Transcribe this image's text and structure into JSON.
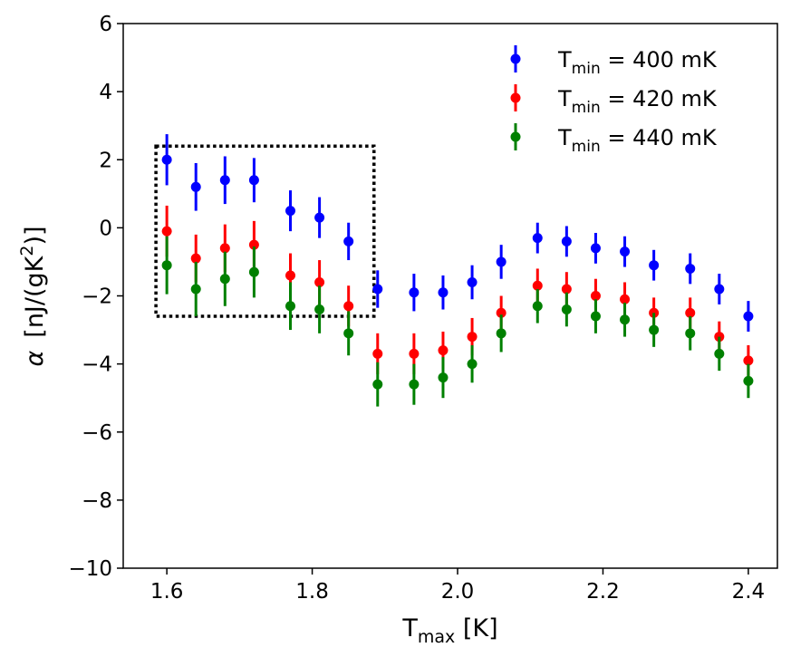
{
  "chart_data": {
    "type": "scatter",
    "xlabel": {
      "main": "T",
      "sub": "max",
      "rest": " [K]"
    },
    "ylabel": {
      "greek": "α",
      "unit": "[nJ/(gK",
      "sup": "2",
      "close": ")]"
    },
    "xlim": [
      1.54,
      2.44
    ],
    "ylim": [
      -10,
      6
    ],
    "xticks": [
      1.6,
      1.8,
      2.0,
      2.2,
      2.4
    ],
    "xtick_labels": [
      "1.6",
      "1.8",
      "2.0",
      "2.2",
      "2.4"
    ],
    "yticks": [
      6,
      4,
      2,
      0,
      -2,
      -4,
      -6,
      -8,
      -10
    ],
    "ytick_labels": [
      "6",
      "4",
      "2",
      "0",
      "−2",
      "−4",
      "−6",
      "−8",
      "−10"
    ],
    "x": [
      1.6,
      1.64,
      1.68,
      1.72,
      1.77,
      1.81,
      1.85,
      1.89,
      1.94,
      1.98,
      2.02,
      2.06,
      2.11,
      2.15,
      2.19,
      2.23,
      2.27,
      2.32,
      2.36,
      2.4
    ],
    "series": [
      {
        "name": "Tmin = 400 mK",
        "label_main": "T",
        "label_sub": "min",
        "label_rest": " = 400 mK",
        "color": "#0000ff",
        "values": [
          2.0,
          1.2,
          1.4,
          1.4,
          0.5,
          0.3,
          -0.4,
          -1.8,
          -1.9,
          -1.9,
          -1.6,
          -1.0,
          -0.3,
          -0.4,
          -0.6,
          -0.7,
          -1.1,
          -1.2,
          -1.8,
          -2.6
        ],
        "err": [
          0.75,
          0.7,
          0.7,
          0.65,
          0.6,
          0.6,
          0.55,
          0.55,
          0.55,
          0.5,
          0.5,
          0.5,
          0.45,
          0.45,
          0.45,
          0.45,
          0.45,
          0.45,
          0.45,
          0.45
        ]
      },
      {
        "name": "Tmin = 420 mK",
        "label_main": "T",
        "label_sub": "min",
        "label_rest": " = 420 mK",
        "color": "#ff0000",
        "values": [
          -0.1,
          -0.9,
          -0.6,
          -0.5,
          -1.4,
          -1.6,
          -2.3,
          -3.7,
          -3.7,
          -3.6,
          -3.2,
          -2.5,
          -1.7,
          -1.8,
          -2.0,
          -2.1,
          -2.5,
          -2.5,
          -3.2,
          -3.9
        ],
        "err": [
          0.75,
          0.7,
          0.7,
          0.7,
          0.65,
          0.65,
          0.6,
          0.6,
          0.6,
          0.55,
          0.55,
          0.5,
          0.5,
          0.5,
          0.5,
          0.5,
          0.45,
          0.45,
          0.45,
          0.45
        ]
      },
      {
        "name": "Tmin = 440 mK",
        "label_main": "T",
        "label_sub": "min",
        "label_rest": " = 440 mK",
        "color": "#008000",
        "values": [
          -1.1,
          -1.8,
          -1.5,
          -1.3,
          -2.3,
          -2.4,
          -3.1,
          -4.6,
          -4.6,
          -4.4,
          -4.0,
          -3.1,
          -2.3,
          -2.4,
          -2.6,
          -2.7,
          -3.0,
          -3.1,
          -3.7,
          -4.5
        ],
        "err": [
          0.85,
          0.8,
          0.8,
          0.75,
          0.7,
          0.7,
          0.65,
          0.65,
          0.6,
          0.6,
          0.55,
          0.55,
          0.5,
          0.5,
          0.5,
          0.5,
          0.5,
          0.5,
          0.5,
          0.5
        ]
      }
    ],
    "annotation": {
      "type": "dotted-rectangle",
      "x_range": [
        1.585,
        1.885
      ],
      "y_range": [
        -2.6,
        2.4
      ]
    },
    "legend": "top-right"
  }
}
